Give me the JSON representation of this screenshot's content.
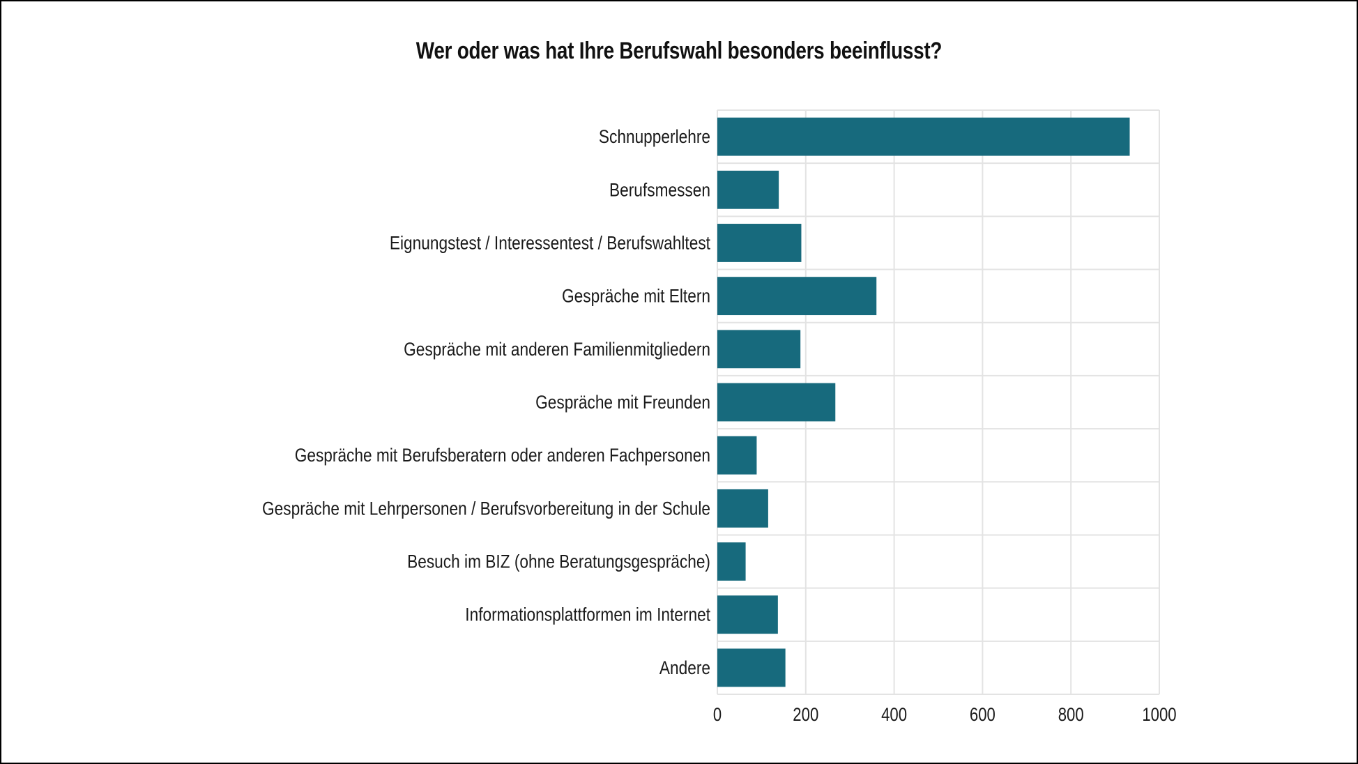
{
  "chart_data": {
    "type": "bar",
    "orientation": "horizontal",
    "title": "Wer oder was hat Ihre Berufswahl besonders beeinflusst?",
    "xlabel": "",
    "ylabel": "",
    "categories": [
      "Schnupperlehre",
      "Berufsmessen",
      "Eignungstest / Interessentest / Berufswahltest",
      "Gespräche mit Eltern",
      "Gespräche mit anderen Familienmitgliedern",
      "Gespräche mit Freunden",
      "Gespräche mit Berufsberatern oder anderen Fachpersonen",
      "Gespräche mit Lehrpersonen / Berufsvorbereitung in der Schule",
      "Besuch im BIZ (ohne Beratungsgespräche)",
      "Informationsplattformen im Internet",
      "Andere"
    ],
    "values": [
      933,
      139,
      190,
      360,
      188,
      267,
      89,
      115,
      64,
      137,
      154
    ],
    "xlim": [
      0,
      1000
    ],
    "xticks": [
      0,
      200,
      400,
      600,
      800,
      1000
    ],
    "xtick_labels": [
      "0",
      "200",
      "400",
      "600",
      "800",
      "1000"
    ],
    "grid": true,
    "legend": "none",
    "bar_color": "#176a7d",
    "grid_color": "#e3e3e3"
  }
}
